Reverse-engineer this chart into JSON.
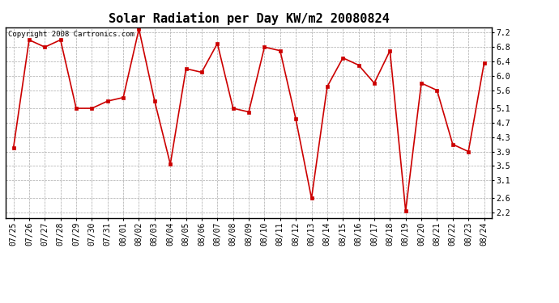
{
  "title": "Solar Radiation per Day KW/m2 20080824",
  "copyright": "Copyright 2008 Cartronics.com",
  "dates": [
    "07/25",
    "07/26",
    "07/27",
    "07/28",
    "07/29",
    "07/30",
    "07/31",
    "08/01",
    "08/02",
    "08/03",
    "08/04",
    "08/05",
    "08/06",
    "08/07",
    "08/08",
    "08/09",
    "08/10",
    "08/11",
    "08/12",
    "08/13",
    "08/14",
    "08/15",
    "08/16",
    "08/17",
    "08/18",
    "08/19",
    "08/20",
    "08/21",
    "08/22",
    "08/23",
    "08/24"
  ],
  "values": [
    4.0,
    7.0,
    6.8,
    7.0,
    5.1,
    5.1,
    5.3,
    5.4,
    7.3,
    5.3,
    3.55,
    6.2,
    6.1,
    6.9,
    5.1,
    5.0,
    6.8,
    6.7,
    4.8,
    2.6,
    5.7,
    6.5,
    6.3,
    5.8,
    6.7,
    2.25,
    5.8,
    5.6,
    4.1,
    3.9,
    6.35
  ],
  "line_color": "#cc0000",
  "marker": "s",
  "marker_size": 2.5,
  "bg_color": "#ffffff",
  "plot_bg_color": "#ffffff",
  "grid_color": "#aaaaaa",
  "yticks": [
    2.2,
    2.6,
    3.1,
    3.5,
    3.9,
    4.3,
    4.7,
    5.1,
    5.6,
    6.0,
    6.4,
    6.8,
    7.2
  ],
  "ylim": [
    2.05,
    7.35
  ],
  "title_fontsize": 11,
  "tick_fontsize": 7,
  "copyright_fontsize": 6.5
}
